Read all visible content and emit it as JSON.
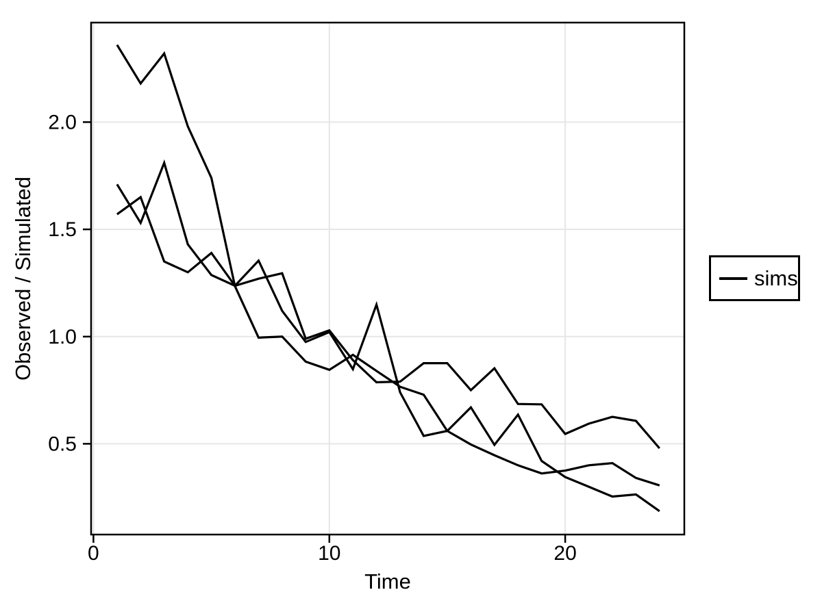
{
  "figure": {
    "background": "#ffffff",
    "line_color": "#000000",
    "grid_color": "#e6e6e6",
    "border_color": "#000000",
    "legend": {
      "label": "sims",
      "symbol": "line-sample",
      "color": "#000000"
    }
  },
  "chart_data": {
    "type": "line",
    "title": "",
    "xlabel": "Time",
    "ylabel": "Observed / Simulated",
    "xlim": [
      -0.1,
      25.05
    ],
    "ylim": [
      0.077,
      2.464
    ],
    "x_ticks": [
      0,
      10,
      20
    ],
    "x_tick_labels": [
      "0",
      "10",
      "20"
    ],
    "y_ticks": [
      0.5,
      1.0,
      1.5,
      2.0
    ],
    "y_tick_labels": [
      "0.5",
      "1.0",
      "1.5",
      "2.0"
    ],
    "grid": true,
    "legend_position": "right",
    "legend_entries": [
      "sims"
    ],
    "x": [
      1,
      2,
      3,
      4,
      5,
      6,
      7,
      8,
      9,
      10,
      11,
      12,
      13,
      14,
      15,
      16,
      17,
      18,
      19,
      20,
      21,
      22,
      23,
      24
    ],
    "series": [
      {
        "name": "sims",
        "values": [
          2.36,
          2.18,
          2.32,
          1.98,
          1.74,
          1.235,
          0.995,
          1.0,
          0.883,
          0.845,
          0.915,
          0.84,
          0.766,
          0.729,
          0.56,
          0.497,
          0.447,
          0.4,
          0.362,
          0.375,
          0.4,
          0.41,
          0.341,
          0.306
        ]
      },
      {
        "name": "sims",
        "values": [
          1.71,
          1.53,
          1.81,
          1.43,
          1.287,
          1.237,
          1.27,
          1.295,
          0.99,
          1.029,
          0.89,
          0.787,
          0.79,
          0.876,
          0.876,
          0.75,
          0.852,
          0.686,
          0.684,
          0.546,
          0.594,
          0.626,
          0.607,
          0.479
        ]
      },
      {
        "name": "sims",
        "values": [
          1.57,
          1.65,
          1.35,
          1.3,
          1.39,
          1.237,
          1.354,
          1.12,
          0.975,
          1.021,
          0.848,
          1.149,
          0.74,
          0.537,
          0.56,
          0.67,
          0.495,
          0.636,
          0.42,
          0.345,
          0.3,
          0.254,
          0.264,
          0.186
        ]
      }
    ]
  }
}
